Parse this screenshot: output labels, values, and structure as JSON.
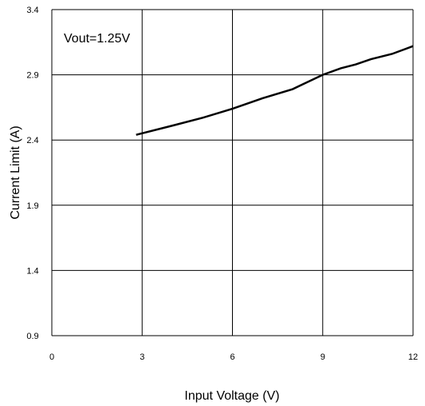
{
  "chart_data": {
    "type": "line",
    "x_label": "Input Voltage (V)",
    "y_label": "Current Limit (A)",
    "annotation": "Vout=1.25V",
    "x": [
      2.8,
      4,
      5,
      6,
      7,
      8,
      9,
      9.6,
      10.1,
      10.6,
      11.3,
      12
    ],
    "series": [
      {
        "name": "Current Limit",
        "color": "#000000",
        "values": [
          2.44,
          2.51,
          2.57,
          2.64,
          2.72,
          2.79,
          2.9,
          2.95,
          2.98,
          3.02,
          3.06,
          3.12
        ]
      }
    ],
    "xlim": [
      0,
      12
    ],
    "xticks": [
      0,
      3,
      6,
      9,
      12
    ],
    "ylim": [
      0.9,
      3.4
    ],
    "yticks": [
      0.9,
      1.4,
      1.9,
      2.4,
      2.9,
      3.4
    ],
    "grid": true
  }
}
